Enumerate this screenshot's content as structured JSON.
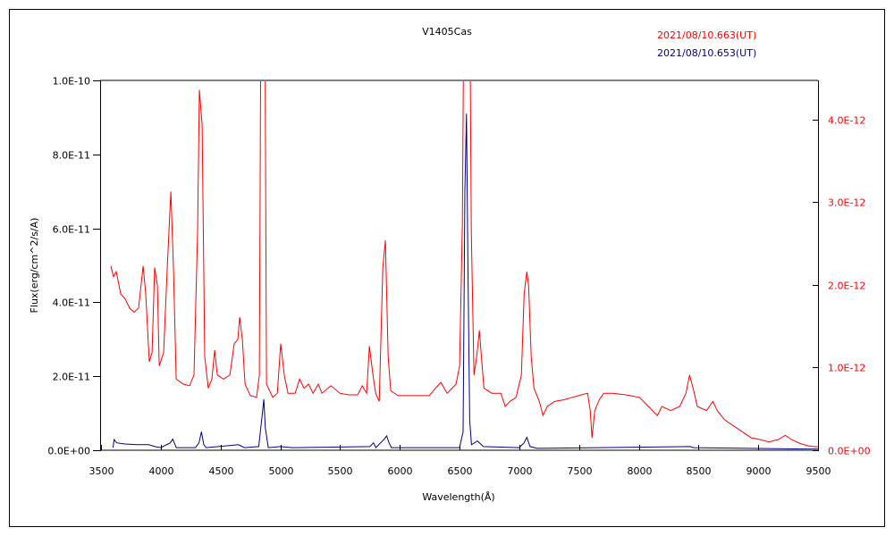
{
  "chart_data": {
    "type": "line",
    "title": "V1405Cas",
    "xlabel": "Wavelength(Å)",
    "ylabel": "Flux(erg/cm^2/s/A)",
    "xlim": [
      3500,
      9500
    ],
    "ylim_left": [
      0,
      1e-10
    ],
    "ylim_right": [
      0,
      4.475e-12
    ],
    "x_ticks": [
      3500,
      4000,
      4500,
      5000,
      5500,
      6000,
      6500,
      7000,
      7500,
      8000,
      8500,
      9000,
      9500
    ],
    "x_tick_labels": [
      "3500",
      "4000",
      "4500",
      "5000",
      "5500",
      "6000",
      "6500",
      "7000",
      "7500",
      "8000",
      "8500",
      "9000",
      "9500"
    ],
    "y_left_ticks": [
      0,
      2e-11,
      4e-11,
      6e-11,
      8e-11,
      1e-10
    ],
    "y_left_tick_labels": [
      "0.0E+00",
      "2.0E-11",
      "4.0E-11",
      "6.0E-11",
      "8.0E-11",
      "1.0E-10"
    ],
    "y_right_ticks": [
      0,
      1e-12,
      2e-12,
      3e-12,
      4e-12
    ],
    "y_right_tick_labels": [
      "0.0E+00",
      "1.0E-12",
      "2.0E-12",
      "3.0E-12",
      "4.0E-12"
    ],
    "grid": false,
    "legend_placement": "top-right",
    "series": [
      {
        "name": "2021/08/10.663(UT)",
        "color": "#ff0000",
        "axis": "right",
        "y_scale": 1e-12,
        "x": [
          3582,
          3605,
          3627,
          3665,
          3702,
          3740,
          3777,
          3814,
          3852,
          3874,
          3904,
          3927,
          3949,
          3972,
          3987,
          4024,
          4054,
          4084,
          4106,
          4129,
          4189,
          4241,
          4278,
          4308,
          4323,
          4346,
          4368,
          4398,
          4428,
          4451,
          4473,
          4525,
          4578,
          4615,
          4645,
          4660,
          4683,
          4705,
          4750,
          4802,
          4825,
          4840,
          4870,
          4885,
          4937,
          4975,
          5004,
          5034,
          5064,
          5124,
          5162,
          5199,
          5237,
          5274,
          5319,
          5349,
          5424,
          5499,
          5573,
          5648,
          5686,
          5723,
          5746,
          5776,
          5798,
          5828,
          5858,
          5880,
          5903,
          5925,
          5985,
          6097,
          6247,
          6299,
          6344,
          6397,
          6471,
          6501,
          6524,
          6539,
          6584,
          6599,
          6621,
          6644,
          6666,
          6689,
          6704,
          6771,
          6846,
          6883,
          6921,
          6973,
          7018,
          7041,
          7063,
          7078,
          7100,
          7123,
          7168,
          7198,
          7235,
          7295,
          7370,
          7445,
          7519,
          7572,
          7594,
          7609,
          7632,
          7669,
          7707,
          7782,
          7894,
          8006,
          8081,
          8156,
          8193,
          8268,
          8343,
          8395,
          8425,
          8455,
          8490,
          8567,
          8620,
          8657,
          8717,
          8829,
          8941,
          9016,
          9091,
          9166,
          9226,
          9278,
          9353,
          9428,
          9500
        ],
        "values": [
          2.23,
          2.1,
          2.16,
          1.89,
          1.83,
          1.72,
          1.67,
          1.72,
          2.23,
          1.89,
          1.07,
          1.18,
          2.21,
          1.99,
          1.02,
          1.18,
          2.21,
          3.13,
          2.21,
          0.86,
          0.8,
          0.78,
          0.91,
          2.64,
          4.36,
          3.94,
          1.13,
          0.75,
          0.86,
          1.21,
          0.91,
          0.86,
          0.91,
          1.29,
          1.34,
          1.61,
          1.34,
          0.8,
          0.66,
          0.64,
          0.91,
          6.0,
          6.0,
          0.8,
          0.64,
          0.69,
          1.29,
          0.91,
          0.69,
          0.69,
          0.86,
          0.75,
          0.8,
          0.69,
          0.8,
          0.69,
          0.78,
          0.69,
          0.67,
          0.67,
          0.78,
          0.69,
          1.26,
          0.91,
          0.69,
          0.59,
          2.21,
          2.54,
          1.13,
          0.72,
          0.66,
          0.66,
          0.66,
          0.75,
          0.82,
          0.69,
          0.8,
          1.02,
          2.75,
          6.0,
          6.0,
          2.64,
          0.91,
          1.13,
          1.45,
          1.02,
          0.75,
          0.69,
          0.69,
          0.53,
          0.59,
          0.64,
          0.91,
          1.89,
          2.16,
          1.99,
          1.13,
          0.75,
          0.59,
          0.42,
          0.53,
          0.59,
          0.61,
          0.64,
          0.67,
          0.69,
          0.48,
          0.15,
          0.48,
          0.61,
          0.69,
          0.69,
          0.67,
          0.64,
          0.53,
          0.42,
          0.53,
          0.48,
          0.53,
          0.69,
          0.91,
          0.75,
          0.53,
          0.48,
          0.59,
          0.48,
          0.37,
          0.26,
          0.15,
          0.13,
          0.1,
          0.13,
          0.18,
          0.13,
          0.08,
          0.05,
          0.04
        ]
      },
      {
        "name": "2021/08/10.653(UT)",
        "color": "#000080",
        "axis": "left",
        "y_scale": 1e-11,
        "x": [
          3600,
          3610,
          3630,
          3700,
          3800,
          3900,
          3950,
          4000,
          4080,
          4100,
          4130,
          4290,
          4320,
          4340,
          4360,
          4380,
          4650,
          4700,
          4820,
          4850,
          4862,
          4875,
          4900,
          5000,
          5100,
          5750,
          5780,
          5800,
          5870,
          5890,
          5910,
          5930,
          6500,
          6530,
          6545,
          6558,
          6570,
          6585,
          6600,
          6650,
          6700,
          7000,
          7040,
          7063,
          7090,
          7150,
          8430,
          8460,
          9500
        ],
        "values": [
          0.07,
          0.29,
          0.2,
          0.17,
          0.15,
          0.15,
          0.1,
          0.07,
          0.2,
          0.3,
          0.07,
          0.07,
          0.2,
          0.5,
          0.15,
          0.07,
          0.15,
          0.07,
          0.1,
          1.0,
          1.38,
          0.6,
          0.07,
          0.1,
          0.07,
          0.1,
          0.2,
          0.07,
          0.3,
          0.39,
          0.2,
          0.07,
          0.07,
          0.5,
          7.0,
          9.1,
          5.0,
          0.8,
          0.15,
          0.25,
          0.1,
          0.07,
          0.2,
          0.35,
          0.1,
          0.05,
          0.1,
          0.07,
          0.03
        ]
      }
    ]
  }
}
